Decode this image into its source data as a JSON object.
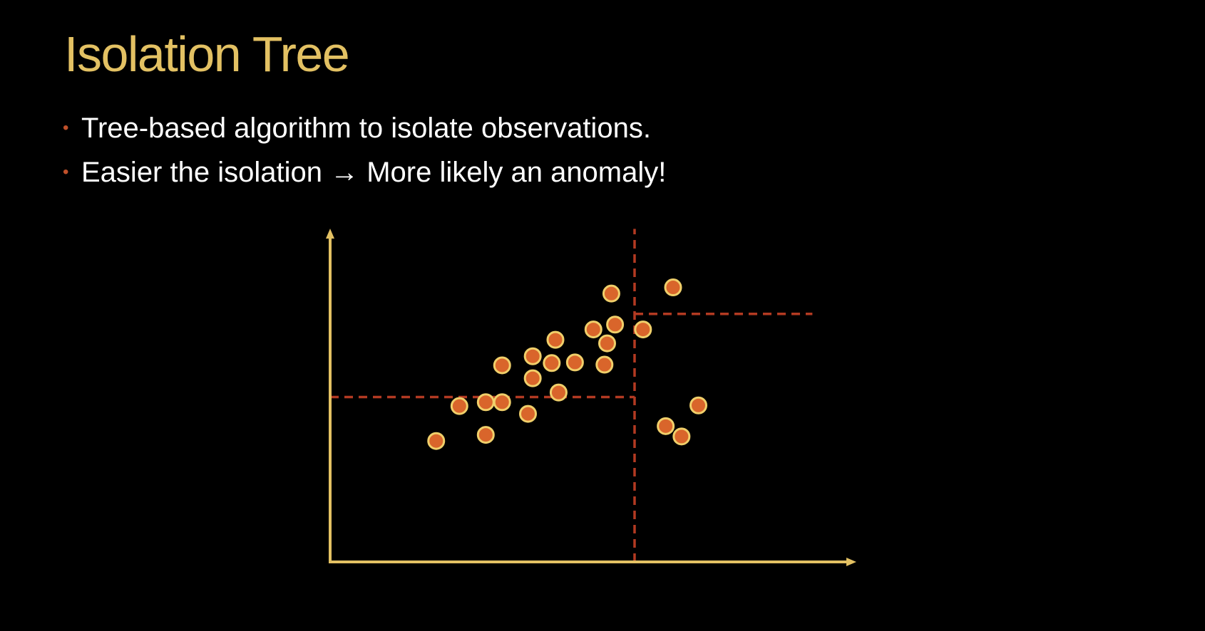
{
  "slide": {
    "title": "Isolation Tree",
    "bullets": [
      "Tree-based algorithm to isolate observations.",
      "Easier the isolation → More likely an anomaly!"
    ],
    "bullet_glyph": "•"
  },
  "colors": {
    "background": "#000000",
    "title": "#e3c163",
    "text": "#ffffff",
    "bullet": "#c0502a",
    "axis": "#e3c163",
    "split_line": "#b33a22",
    "point_fill": "#d9652b",
    "point_stroke": "#f0cf6a"
  },
  "chart_data": {
    "type": "scatter",
    "title": "",
    "xlabel": "",
    "ylabel": "",
    "xlim": [
      0,
      100
    ],
    "ylim": [
      0,
      100
    ],
    "grid": false,
    "points": [
      {
        "x": 20.1,
        "y": 37.4
      },
      {
        "x": 24.5,
        "y": 48.2
      },
      {
        "x": 29.5,
        "y": 39.3
      },
      {
        "x": 29.5,
        "y": 49.4
      },
      {
        "x": 32.6,
        "y": 49.4
      },
      {
        "x": 32.6,
        "y": 60.8
      },
      {
        "x": 37.5,
        "y": 45.8
      },
      {
        "x": 38.4,
        "y": 56.8
      },
      {
        "x": 38.4,
        "y": 63.6
      },
      {
        "x": 42.0,
        "y": 61.5
      },
      {
        "x": 42.7,
        "y": 68.7
      },
      {
        "x": 43.3,
        "y": 52.4
      },
      {
        "x": 46.4,
        "y": 61.7
      },
      {
        "x": 49.9,
        "y": 71.9
      },
      {
        "x": 52.0,
        "y": 61.0
      },
      {
        "x": 52.5,
        "y": 67.6
      },
      {
        "x": 53.3,
        "y": 83.0
      },
      {
        "x": 54.0,
        "y": 73.4
      },
      {
        "x": 59.3,
        "y": 71.9
      },
      {
        "x": 63.6,
        "y": 42.0
      },
      {
        "x": 65.0,
        "y": 84.9
      },
      {
        "x": 66.6,
        "y": 38.8
      },
      {
        "x": 69.8,
        "y": 48.4
      }
    ],
    "splits": [
      {
        "orientation": "vertical",
        "at": 57.7,
        "from": 0,
        "to": 103
      },
      {
        "orientation": "horizontal",
        "at": 51.0,
        "from": 0,
        "to": 57.7
      },
      {
        "orientation": "horizontal",
        "at": 76.7,
        "from": 57.7,
        "to": 91.4
      }
    ]
  }
}
